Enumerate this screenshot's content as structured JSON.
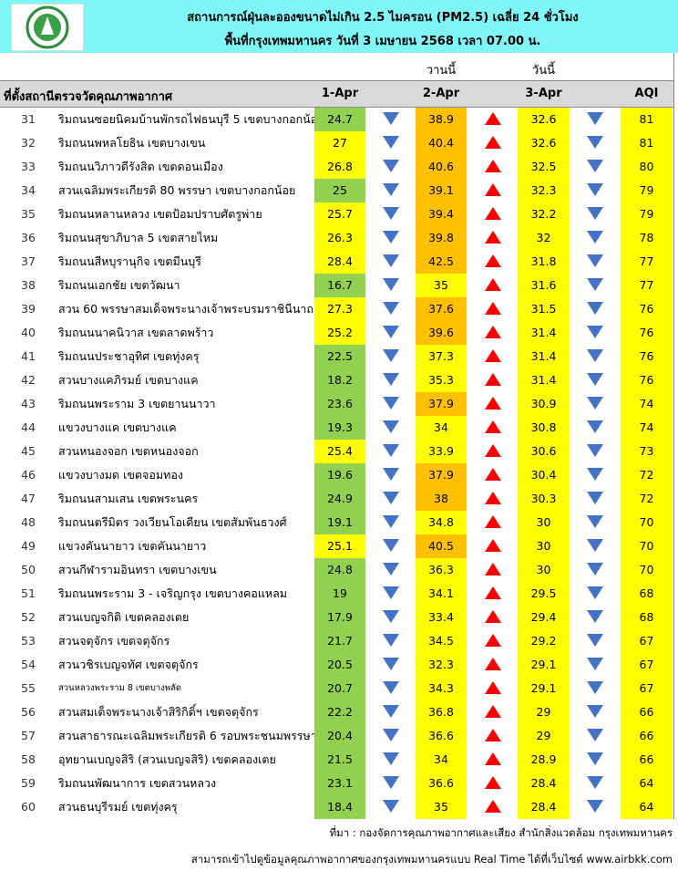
{
  "header": {
    "title": "สถานการณ์ฝุ่นละอองขนาดไม่เกิน 2.5 ไมครอน (PM2.5) เฉลี่ย 24 ชั่วโมง",
    "subtitle": "พื้นที่กรุงเทพมหานคร วันที่ 3 เมษายน 2568 เวลา 07.00 น."
  },
  "table": {
    "group_labels": [
      "วานนี้",
      "วันนี้"
    ],
    "columns": [
      "ที่ตั้งสถานีตรวจวัดคุณภาพอากาศ",
      "1-Apr",
      "2-Apr",
      "3-Apr",
      "AQI"
    ],
    "rows": [
      [
        31,
        "ริมถนนซอยนิคมบ้านพักรถไฟธนบุรี 5 เขตบางกอกน้อย",
        24.7,
        38.9,
        32.6,
        81
      ],
      [
        32,
        "ริมถนนพหลโยธิน เขตบางเขน",
        27,
        40.4,
        32.6,
        81
      ],
      [
        33,
        "ริมถนนวิภาวดีรังสิต เขตดอนเมือง",
        26.8,
        40.6,
        32.5,
        80
      ],
      [
        34,
        "สวนเฉลิมพระเกียรติ 80 พรรษา  เขตบางกอกน้อย",
        25,
        39.1,
        32.3,
        79
      ],
      [
        35,
        "ริมถนนหลานหลวง เขตป้อมปราบศัตรูพ่าย",
        25.7,
        39.4,
        32.2,
        79
      ],
      [
        36,
        "ริมถนนสุขาภิบาล 5 เขตสายไหม",
        26.3,
        39.8,
        32,
        78
      ],
      [
        37,
        "ริมถนนสีหบุรานุกิจ เขตมีนบุรี",
        28.4,
        42.5,
        31.8,
        77
      ],
      [
        38,
        "ริมถนนเอกชัย เขตวัฒนา",
        16.7,
        35,
        31.6,
        77
      ],
      [
        39,
        "สวน 60 พรรษาสมเด็จพระนางเจ้าพระบรมราชินีนาถ เขต",
        27.3,
        37.6,
        31.5,
        76
      ],
      [
        40,
        "ริมถนนนาคนิวาส เขตลาดพร้าว",
        25.2,
        39.6,
        31.4,
        76
      ],
      [
        41,
        "ริมถนนประชาอุทิศ เขตทุ่งครุ",
        22.5,
        37.3,
        31.4,
        76
      ],
      [
        42,
        "สวนบางแคภิรมย์ เขตบางแค",
        18.2,
        35.3,
        31.4,
        76
      ],
      [
        43,
        "ริมถนนพระราม 3 เขตยานนาวา",
        23.6,
        37.9,
        30.9,
        74
      ],
      [
        44,
        "แขวงบางแค เขตบางแค",
        19.3,
        34,
        30.8,
        74
      ],
      [
        45,
        "สวนหนองจอก เขตหนองจอก",
        25.4,
        33.9,
        30.6,
        73
      ],
      [
        46,
        "แขวงบางมด เขตจอมทอง",
        19.6,
        37.9,
        30.4,
        72
      ],
      [
        47,
        "ริมถนนสามเสน เขตพระนคร",
        24.9,
        38,
        30.3,
        72
      ],
      [
        48,
        "ริมถนนตรีมิตร วงเวียนโอเดียน เขตสัมพันธวงศ์",
        19.1,
        34.8,
        30,
        70
      ],
      [
        49,
        "แขวงคันนายาว เขตคันนายาว",
        25.1,
        40.5,
        30,
        70
      ],
      [
        50,
        "สวนกีฬารามอินทรา เขตบางเขน",
        24.8,
        36.3,
        30,
        70
      ],
      [
        51,
        "ริมถนนพระราม 3 - เจริญกรุง เขตบางคอแหลม",
        19,
        34.1,
        29.5,
        68
      ],
      [
        52,
        "สวนเบญจกิติ  เขตคลองเตย",
        17.9,
        33.4,
        29.4,
        68
      ],
      [
        53,
        "สวนจตุจักร เขตจตุจักร",
        21.7,
        34.5,
        29.2,
        67
      ],
      [
        54,
        "สวนวชิรเบญจทัศ เขตจตุจักร",
        20.5,
        32.3,
        29.1,
        67
      ],
      [
        55,
        "สวนหลวงพระราม 8 เขตบางพลัด",
        20.7,
        34.3,
        29.1,
        67
      ],
      [
        56,
        "สวนสมเด็จพระนางเจ้าสิริกิติ์ฯ เขตจตุจักร",
        22.2,
        36.8,
        29,
        66
      ],
      [
        57,
        "สวนสาธารณะเฉลิมพระเกียรติ 6 รอบพระชนมพรรษา",
        20.4,
        36.6,
        29,
        66
      ],
      [
        58,
        "อุทยานเบญจสิริ (สวนเบญจสิริ) เขตคลองเตย",
        21.5,
        34,
        28.9,
        66
      ],
      [
        59,
        "ริมถนนพัฒนาการ เขตสวนหลวง",
        23.1,
        36.6,
        28.4,
        64
      ],
      [
        60,
        "สวนธนบุรีรมย์ เขตทุ่งครุ",
        18.4,
        35,
        28.4,
        64
      ]
    ],
    "fills": [
      [
        "#92d050",
        "#ffc000"
      ],
      [
        "#ffff00",
        "#ffc000"
      ],
      [
        "#ffff00",
        "#ffc000"
      ],
      [
        "#92d050",
        "#ffc000"
      ],
      [
        "#ffff00",
        "#ffc000"
      ],
      [
        "#ffff00",
        "#ffc000"
      ],
      [
        "#ffff00",
        "#ffc000"
      ],
      [
        "#92d050",
        "#ffff00"
      ],
      [
        "#ffff00",
        "#ffc000"
      ],
      [
        "#ffff00",
        "#ffc000"
      ],
      [
        "#92d050",
        "#ffff00"
      ],
      [
        "#92d050",
        "#ffff00"
      ],
      [
        "#92d050",
        "#ffc000"
      ],
      [
        "#92d050",
        "#ffff00"
      ],
      [
        "#ffff00",
        "#ffff00"
      ],
      [
        "#92d050",
        "#ffc000"
      ],
      [
        "#92d050",
        "#ffc000"
      ],
      [
        "#92d050",
        "#ffff00"
      ],
      [
        "#ffff00",
        "#ffc000"
      ],
      [
        "#92d050",
        "#ffff00"
      ],
      [
        "#92d050",
        "#ffff00"
      ],
      [
        "#92d050",
        "#ffff00"
      ],
      [
        "#92d050",
        "#ffff00"
      ],
      [
        "#92d050",
        "#ffff00"
      ],
      [
        "#92d050",
        "#ffff00"
      ],
      [
        "#92d050",
        "#ffff00"
      ],
      [
        "#92d050",
        "#ffff00"
      ],
      [
        "#92d050",
        "#ffff00"
      ],
      [
        "#92d050",
        "#ffff00"
      ],
      [
        "#92d050",
        "#ffff00"
      ]
    ]
  },
  "footer": {
    "source": "ที่มา : กองจัดการคุณภาพอากาศและเสียง สำนักสิ่งแวดล้อม กรุงเทพมหานคร",
    "note": "สามารถเข้าไปดูข้อมูลคุณภาพอากาศของกรุงเทพมหานครแบบ Real Time ได้ที่เว็บไซต์ www.airbkk.com"
  }
}
